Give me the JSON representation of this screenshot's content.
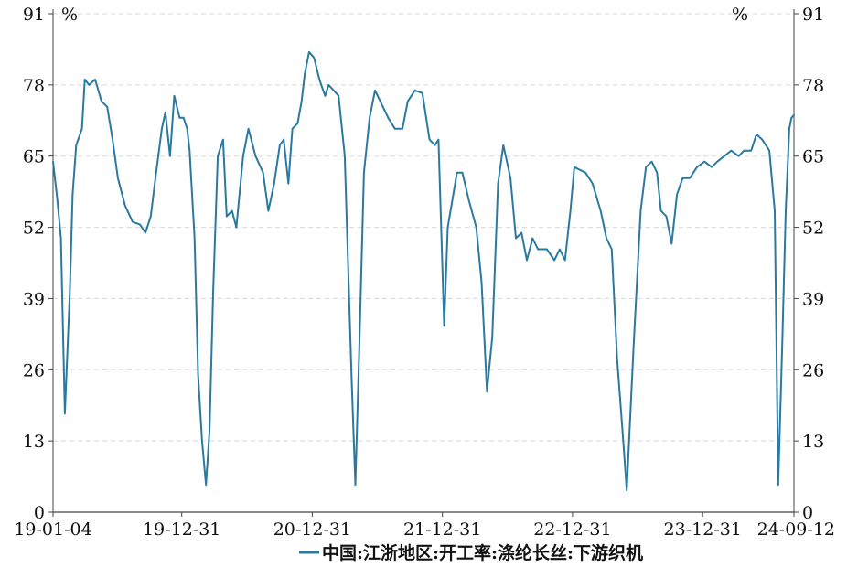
{
  "chart_data": {
    "type": "line",
    "title": "",
    "left_unit": "%",
    "right_unit": "%",
    "y_ticks": [
      "0",
      "13",
      "26",
      "39",
      "52",
      "65",
      "78",
      "91"
    ],
    "ylim": [
      0,
      91
    ],
    "x_tick_labels": [
      "19-01-04",
      "19-12-31",
      "20-12-31",
      "21-12-31",
      "22-12-31",
      "23-12-31",
      "24-09-12"
    ],
    "x_tick_dates": [
      "2019-01-04",
      "2019-12-31",
      "2020-12-31",
      "2021-12-31",
      "2022-12-31",
      "2023-12-31",
      "2024-09-12"
    ],
    "xlim": [
      "2019-01-04",
      "2024-09-12"
    ],
    "grid": true,
    "legend_position": "bottom",
    "line_color": "#2a7aa0",
    "series": [
      {
        "name": "中国:江浙地区:开工率:涤纶长丝:下游织机",
        "points": [
          [
            "2019-01-04",
            64
          ],
          [
            "2019-01-16",
            57
          ],
          [
            "2019-01-26",
            50
          ],
          [
            "2019-02-06",
            18
          ],
          [
            "2019-02-20",
            40
          ],
          [
            "2019-02-28",
            58
          ],
          [
            "2019-03-10",
            67
          ],
          [
            "2019-03-26",
            70
          ],
          [
            "2019-04-03",
            79
          ],
          [
            "2019-04-15",
            78
          ],
          [
            "2019-05-02",
            79
          ],
          [
            "2019-05-20",
            75
          ],
          [
            "2019-06-05",
            74
          ],
          [
            "2019-06-20",
            68
          ],
          [
            "2019-07-05",
            61
          ],
          [
            "2019-07-25",
            56
          ],
          [
            "2019-08-15",
            53
          ],
          [
            "2019-09-05",
            52.5
          ],
          [
            "2019-09-20",
            51
          ],
          [
            "2019-10-05",
            54
          ],
          [
            "2019-10-20",
            62
          ],
          [
            "2019-11-05",
            70
          ],
          [
            "2019-11-15",
            73
          ],
          [
            "2019-11-28",
            65
          ],
          [
            "2019-12-10",
            76
          ],
          [
            "2019-12-25",
            72
          ],
          [
            "2020-01-05",
            72
          ],
          [
            "2020-01-15",
            70
          ],
          [
            "2020-01-22",
            66
          ],
          [
            "2020-02-05",
            50
          ],
          [
            "2020-02-15",
            25
          ],
          [
            "2020-02-26",
            13
          ],
          [
            "2020-03-08",
            5
          ],
          [
            "2020-03-18",
            15
          ],
          [
            "2020-03-28",
            40
          ],
          [
            "2020-04-10",
            65
          ],
          [
            "2020-04-25",
            68
          ],
          [
            "2020-05-05",
            54
          ],
          [
            "2020-05-20",
            55
          ],
          [
            "2020-06-01",
            52
          ],
          [
            "2020-06-20",
            65
          ],
          [
            "2020-07-05",
            70
          ],
          [
            "2020-07-25",
            65
          ],
          [
            "2020-08-15",
            62
          ],
          [
            "2020-08-30",
            55
          ],
          [
            "2020-09-15",
            60
          ],
          [
            "2020-10-01",
            67
          ],
          [
            "2020-10-12",
            68
          ],
          [
            "2020-10-25",
            60
          ],
          [
            "2020-11-05",
            70
          ],
          [
            "2020-11-20",
            71
          ],
          [
            "2020-12-01",
            75
          ],
          [
            "2020-12-10",
            80
          ],
          [
            "2020-12-22",
            84
          ],
          [
            "2021-01-05",
            83
          ],
          [
            "2021-01-20",
            79
          ],
          [
            "2021-02-05",
            76
          ],
          [
            "2021-02-15",
            78
          ],
          [
            "2021-03-01",
            77
          ],
          [
            "2021-03-15",
            76
          ],
          [
            "2021-04-01",
            65
          ],
          [
            "2021-04-20",
            25
          ],
          [
            "2021-05-01",
            5
          ],
          [
            "2021-05-12",
            30
          ],
          [
            "2021-05-25",
            62
          ],
          [
            "2021-06-10",
            72
          ],
          [
            "2021-06-25",
            77
          ],
          [
            "2021-07-10",
            75
          ],
          [
            "2021-08-01",
            72
          ],
          [
            "2021-08-20",
            70
          ],
          [
            "2021-09-10",
            70
          ],
          [
            "2021-09-25",
            75
          ],
          [
            "2021-10-15",
            77
          ],
          [
            "2021-11-05",
            76.5
          ],
          [
            "2021-11-25",
            68
          ],
          [
            "2021-12-10",
            67
          ],
          [
            "2021-12-20",
            68
          ],
          [
            "2022-01-05",
            34
          ],
          [
            "2022-01-15",
            52
          ],
          [
            "2022-01-28",
            57
          ],
          [
            "2022-02-10",
            62
          ],
          [
            "2022-02-25",
            62
          ],
          [
            "2022-03-15",
            57
          ],
          [
            "2022-04-05",
            52
          ],
          [
            "2022-04-20",
            42
          ],
          [
            "2022-05-05",
            22
          ],
          [
            "2022-05-20",
            32
          ],
          [
            "2022-06-05",
            60
          ],
          [
            "2022-06-20",
            67
          ],
          [
            "2022-07-10",
            61
          ],
          [
            "2022-07-25",
            50
          ],
          [
            "2022-08-10",
            51
          ],
          [
            "2022-08-25",
            46
          ],
          [
            "2022-09-10",
            50
          ],
          [
            "2022-09-25",
            48
          ],
          [
            "2022-10-20",
            48
          ],
          [
            "2022-11-10",
            46
          ],
          [
            "2022-11-25",
            48
          ],
          [
            "2022-12-10",
            46
          ],
          [
            "2022-12-25",
            55
          ],
          [
            "2023-01-05",
            63
          ],
          [
            "2023-02-05",
            62
          ],
          [
            "2023-02-25",
            60
          ],
          [
            "2023-03-20",
            55
          ],
          [
            "2023-04-05",
            50
          ],
          [
            "2023-04-20",
            48
          ],
          [
            "2023-05-05",
            28
          ],
          [
            "2023-05-20",
            15
          ],
          [
            "2023-06-01",
            4
          ],
          [
            "2023-06-20",
            30
          ],
          [
            "2023-07-10",
            55
          ],
          [
            "2023-07-25",
            63
          ],
          [
            "2023-08-10",
            64
          ],
          [
            "2023-08-25",
            62
          ],
          [
            "2023-09-05",
            55
          ],
          [
            "2023-09-20",
            54
          ],
          [
            "2023-10-05",
            49
          ],
          [
            "2023-10-20",
            58
          ],
          [
            "2023-11-05",
            61
          ],
          [
            "2023-11-25",
            61
          ],
          [
            "2023-12-15",
            63
          ],
          [
            "2024-01-05",
            64
          ],
          [
            "2024-01-25",
            63
          ],
          [
            "2024-02-10",
            64
          ],
          [
            "2024-03-01",
            65
          ],
          [
            "2024-03-20",
            66
          ],
          [
            "2024-04-10",
            65
          ],
          [
            "2024-04-25",
            66
          ],
          [
            "2024-05-15",
            66
          ],
          [
            "2024-05-30",
            69
          ],
          [
            "2024-06-15",
            68
          ],
          [
            "2024-07-05",
            66
          ],
          [
            "2024-07-20",
            55
          ],
          [
            "2024-07-30",
            5
          ],
          [
            "2024-08-10",
            30
          ],
          [
            "2024-08-20",
            55
          ],
          [
            "2024-08-30",
            70
          ],
          [
            "2024-09-05",
            72
          ],
          [
            "2024-09-12",
            72.5
          ]
        ]
      }
    ]
  }
}
